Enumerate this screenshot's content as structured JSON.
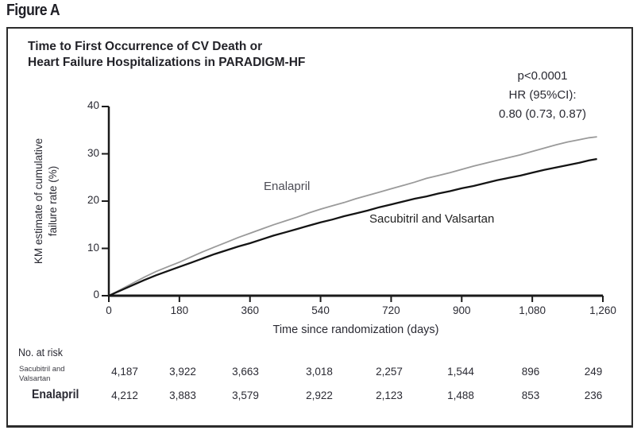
{
  "figure_label": "Figure A",
  "title": {
    "line1": "Time to First Occurrence of CV Death or",
    "line2": "Heart Failure Hospitalizations in PARADIGM-HF"
  },
  "stats": {
    "line1": "p<0.0001",
    "line2": "HR (95%CI):",
    "line3": "0.80 (0.73, 0.87)"
  },
  "colors": {
    "enalapril_curve": "#9a9a9a",
    "sacubitril_curve": "#141414",
    "axis": "#1a1a1a",
    "text": "#2a2a33"
  },
  "chart_data": {
    "type": "line",
    "title": "Time to First Occurrence of CV Death or Heart Failure Hospitalizations in PARADIGM-HF",
    "xlabel": "Time since randomization (days)",
    "ylabel_line1": "KM estimate of cumulative",
    "ylabel_line2": "failure rate (%)",
    "xlim": [
      0,
      1260
    ],
    "ylim": [
      0,
      40
    ],
    "xticks": [
      0,
      180,
      360,
      540,
      720,
      900,
      1080,
      1260
    ],
    "xtick_labels": [
      "0",
      "180",
      "360",
      "540",
      "720",
      "900",
      "1,080",
      "1,260"
    ],
    "yticks": [
      0,
      10,
      20,
      30,
      40
    ],
    "ytick_labels": [
      "0",
      "10",
      "20",
      "30",
      "40"
    ],
    "grid": false,
    "legend": "inline curve labels",
    "annotation": "p<0.0001; HR (95%CI): 0.80 (0.73, 0.87)",
    "series": [
      {
        "name": "Enalapril",
        "color_key": "enalapril_curve",
        "points": [
          [
            0,
            0
          ],
          [
            30,
            1.3
          ],
          [
            60,
            2.6
          ],
          [
            90,
            3.9
          ],
          [
            120,
            5.1
          ],
          [
            150,
            6.1
          ],
          [
            180,
            7.1
          ],
          [
            210,
            8.2
          ],
          [
            240,
            9.3
          ],
          [
            270,
            10.3
          ],
          [
            300,
            11.3
          ],
          [
            330,
            12.3
          ],
          [
            360,
            13.2
          ],
          [
            390,
            14.1
          ],
          [
            420,
            15.0
          ],
          [
            450,
            15.8
          ],
          [
            480,
            16.6
          ],
          [
            510,
            17.5
          ],
          [
            540,
            18.3
          ],
          [
            570,
            19.0
          ],
          [
            600,
            19.7
          ],
          [
            630,
            20.5
          ],
          [
            660,
            21.2
          ],
          [
            690,
            21.9
          ],
          [
            720,
            22.6
          ],
          [
            750,
            23.3
          ],
          [
            780,
            24.0
          ],
          [
            810,
            24.8
          ],
          [
            840,
            25.4
          ],
          [
            870,
            26.0
          ],
          [
            900,
            26.7
          ],
          [
            930,
            27.4
          ],
          [
            960,
            28.0
          ],
          [
            990,
            28.6
          ],
          [
            1020,
            29.2
          ],
          [
            1050,
            29.8
          ],
          [
            1080,
            30.5
          ],
          [
            1110,
            31.2
          ],
          [
            1140,
            31.9
          ],
          [
            1170,
            32.5
          ],
          [
            1200,
            33.0
          ],
          [
            1225,
            33.4
          ],
          [
            1245,
            33.6
          ]
        ]
      },
      {
        "name": "Sacubitril and Valsartan",
        "color_key": "sacubitril_curve",
        "points": [
          [
            0,
            0
          ],
          [
            30,
            1.1
          ],
          [
            60,
            2.2
          ],
          [
            90,
            3.3
          ],
          [
            120,
            4.3
          ],
          [
            150,
            5.2
          ],
          [
            180,
            6.1
          ],
          [
            210,
            7.0
          ],
          [
            240,
            7.9
          ],
          [
            270,
            8.8
          ],
          [
            300,
            9.6
          ],
          [
            330,
            10.4
          ],
          [
            360,
            11.1
          ],
          [
            390,
            11.9
          ],
          [
            420,
            12.7
          ],
          [
            450,
            13.4
          ],
          [
            480,
            14.1
          ],
          [
            510,
            14.8
          ],
          [
            540,
            15.5
          ],
          [
            570,
            16.1
          ],
          [
            600,
            16.8
          ],
          [
            630,
            17.4
          ],
          [
            660,
            18.0
          ],
          [
            690,
            18.7
          ],
          [
            720,
            19.3
          ],
          [
            750,
            19.9
          ],
          [
            780,
            20.5
          ],
          [
            810,
            21.0
          ],
          [
            840,
            21.6
          ],
          [
            870,
            22.1
          ],
          [
            900,
            22.7
          ],
          [
            930,
            23.2
          ],
          [
            960,
            23.8
          ],
          [
            990,
            24.4
          ],
          [
            1020,
            24.9
          ],
          [
            1050,
            25.4
          ],
          [
            1080,
            26.0
          ],
          [
            1110,
            26.6
          ],
          [
            1140,
            27.1
          ],
          [
            1170,
            27.6
          ],
          [
            1200,
            28.1
          ],
          [
            1225,
            28.6
          ],
          [
            1245,
            28.9
          ]
        ]
      }
    ]
  },
  "at_risk": {
    "header": "No. at risk",
    "rows": [
      {
        "label_lines": [
          "Sacubitril and",
          "Valsartan"
        ],
        "small_label": true,
        "values": [
          "4,187",
          "3,922",
          "3,663",
          "3,018",
          "2,257",
          "1,544",
          "896",
          "249"
        ]
      },
      {
        "label_lines": [
          "Enalapril"
        ],
        "small_label": false,
        "values": [
          "4,212",
          "3,883",
          "3,579",
          "2,922",
          "2,123",
          "1,488",
          "853",
          "236"
        ]
      }
    ]
  }
}
